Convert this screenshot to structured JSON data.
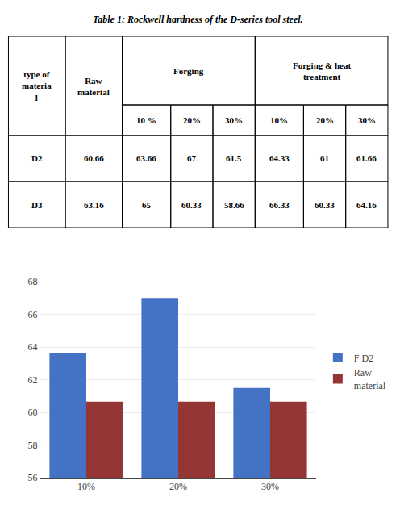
{
  "chart_data": [
    {
      "type": "table",
      "title": "Table 1: Rockwell hardness of the D-series tool steel.",
      "header_groups": [
        {
          "label": "type of\nmateria\nl"
        },
        {
          "label": "Raw\nmaterial"
        },
        {
          "label": "Forging",
          "columns": [
            "10 %",
            "20%",
            "30%"
          ]
        },
        {
          "label": "Forging & heat\ntreatment",
          "columns": [
            "10%",
            "20%",
            "30%"
          ]
        }
      ],
      "rows": [
        [
          "D2",
          "60.66",
          "63.66",
          "67",
          "61.5",
          "64.33",
          "61",
          "61.66"
        ],
        [
          "D3",
          "63.16",
          "65",
          "60.33",
          "58.66",
          "66.33",
          "60.33",
          "64.16"
        ]
      ]
    },
    {
      "type": "bar",
      "categories": [
        "10%",
        "20%",
        "30%"
      ],
      "series": [
        {
          "name": "F D2",
          "color": "#4472C4",
          "values": [
            63.66,
            67,
            61.5
          ]
        },
        {
          "name": "Raw\nmaterial",
          "color": "#943634",
          "values": [
            60.66,
            60.66,
            60.66
          ]
        }
      ],
      "ylim": [
        56,
        69
      ],
      "yticks": [
        56,
        58,
        60,
        62,
        64,
        66,
        68
      ],
      "grid": true,
      "legend": "right"
    }
  ]
}
